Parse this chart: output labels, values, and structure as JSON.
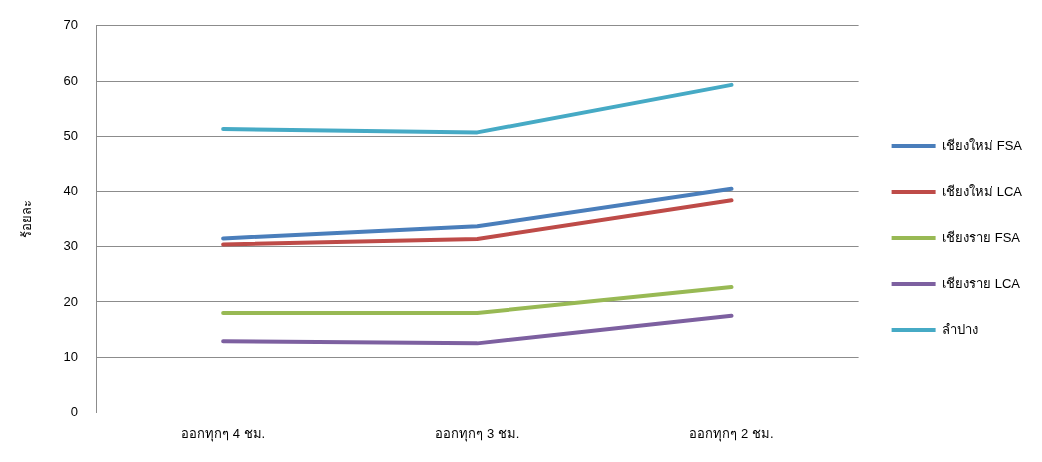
{
  "chart_data": {
    "type": "line",
    "ylabel": "ร้อยละ",
    "categories": [
      "ออกทุกๆ 4 ชม.",
      "ออกทุกๆ 3 ชม.",
      "ออกทุกๆ 2 ชม."
    ],
    "series": [
      {
        "name": "เชียงใหม่ FSA",
        "color": "#4a7ebb",
        "values": [
          31.5,
          33.7,
          40.5
        ]
      },
      {
        "name": "เชียงใหม่ LCA",
        "color": "#be4b48",
        "values": [
          30.4,
          31.4,
          38.4
        ]
      },
      {
        "name": "เชียงราย FSA",
        "color": "#98b954",
        "values": [
          18.0,
          18.0,
          22.7
        ]
      },
      {
        "name": "เชียงราย LCA",
        "color": "#7d60a0",
        "values": [
          12.9,
          12.5,
          17.5
        ]
      },
      {
        "name": "ลำปาง",
        "color": "#46aac5",
        "values": [
          51.3,
          50.7,
          59.3
        ]
      }
    ],
    "ylim": [
      0,
      70
    ],
    "yticks": [
      0,
      10,
      20,
      30,
      40,
      50,
      60,
      70
    ],
    "grid": "y",
    "legend": "right",
    "marker": "none",
    "line_style": "solid"
  }
}
